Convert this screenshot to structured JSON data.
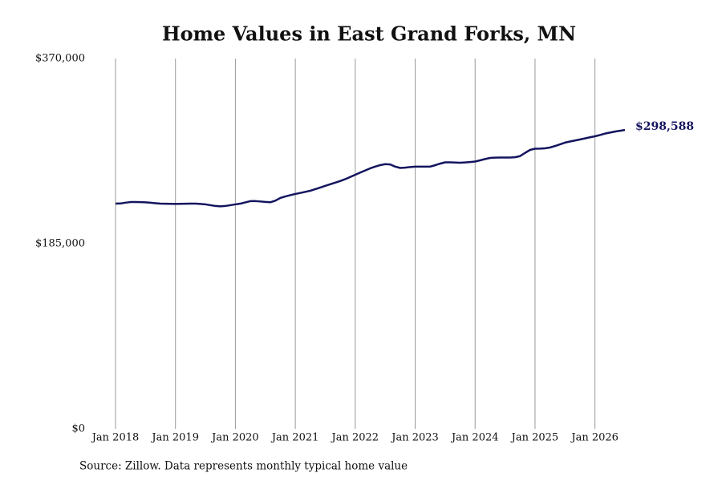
{
  "chart_data": {
    "type": "line",
    "title": "Home Values in East Grand Forks, MN",
    "source": "Source: Zillow. Data represents monthly typical home value",
    "x": [
      "2018-01",
      "2018-02",
      "2018-03",
      "2018-04",
      "2018-05",
      "2018-06",
      "2018-07",
      "2018-08",
      "2018-09",
      "2018-10",
      "2018-11",
      "2018-12",
      "2019-01",
      "2019-02",
      "2019-03",
      "2019-04",
      "2019-05",
      "2019-06",
      "2019-07",
      "2019-08",
      "2019-09",
      "2019-10",
      "2019-11",
      "2019-12",
      "2020-01",
      "2020-02",
      "2020-03",
      "2020-04",
      "2020-05",
      "2020-06",
      "2020-07",
      "2020-08",
      "2020-09",
      "2020-10",
      "2020-11",
      "2020-12",
      "2021-01",
      "2021-02",
      "2021-03",
      "2021-04",
      "2021-05",
      "2021-06",
      "2021-07",
      "2021-08",
      "2021-09",
      "2021-10",
      "2021-11",
      "2021-12",
      "2022-01",
      "2022-02",
      "2022-03",
      "2022-04",
      "2022-05",
      "2022-06",
      "2022-07",
      "2022-08",
      "2022-09",
      "2022-10",
      "2022-11",
      "2022-12",
      "2023-01",
      "2023-02",
      "2023-03",
      "2023-04",
      "2023-05",
      "2023-06",
      "2023-07",
      "2023-08",
      "2023-09",
      "2023-10",
      "2023-11",
      "2023-12",
      "2024-01",
      "2024-02",
      "2024-03",
      "2024-04",
      "2024-05",
      "2024-06",
      "2024-07",
      "2024-08",
      "2024-09",
      "2024-10",
      "2024-11",
      "2024-12",
      "2025-01",
      "2025-02",
      "2025-03",
      "2025-04",
      "2025-05",
      "2025-06",
      "2025-07",
      "2025-08",
      "2025-09",
      "2025-10",
      "2025-11",
      "2025-12",
      "2026-01",
      "2026-02",
      "2026-03",
      "2026-04",
      "2026-05",
      "2026-06",
      "2026-07"
    ],
    "series": [
      {
        "name": "Home value",
        "color": "#14145f",
        "values": [
          225000,
          225200,
          226000,
          226600,
          226600,
          226500,
          226300,
          225900,
          225400,
          225000,
          224900,
          224800,
          224700,
          224800,
          224900,
          225000,
          225000,
          224700,
          224300,
          223500,
          222700,
          222300,
          222700,
          223500,
          224300,
          225000,
          226300,
          227500,
          227600,
          227200,
          226700,
          226400,
          228000,
          230700,
          232200,
          233500,
          234700,
          235700,
          236800,
          237900,
          239500,
          241100,
          242800,
          244400,
          246000,
          247600,
          249500,
          251700,
          253900,
          256100,
          258200,
          260300,
          262000,
          263500,
          264500,
          264200,
          262000,
          260700,
          261000,
          261600,
          262000,
          262000,
          262000,
          262000,
          263400,
          265000,
          266300,
          266300,
          266100,
          265900,
          266200,
          266600,
          267100,
          268300,
          269600,
          270700,
          271000,
          271100,
          271100,
          271100,
          271400,
          272500,
          275700,
          278700,
          279900,
          280000,
          280300,
          281100,
          282600,
          284300,
          286000,
          287100,
          288100,
          289100,
          290200,
          291300,
          292300,
          293600,
          295000,
          296000,
          297000,
          297800,
          298588
        ],
        "value_labels": [
          null,
          null,
          null,
          null,
          null,
          null,
          null,
          null,
          null,
          null,
          null,
          null,
          null,
          null,
          null,
          null,
          null,
          null,
          null,
          null,
          null,
          null,
          null,
          null,
          null,
          null,
          null,
          null,
          null,
          null,
          null,
          null,
          null,
          null,
          null,
          null,
          null,
          null,
          null,
          null,
          null,
          null,
          null,
          null,
          null,
          null,
          null,
          null,
          null,
          null,
          null,
          null,
          null,
          null,
          null,
          null,
          null,
          null,
          null,
          null,
          null,
          null,
          null,
          null,
          null,
          null,
          null,
          null,
          null,
          null,
          null,
          null,
          null,
          null,
          null,
          null,
          null,
          null,
          null,
          null,
          null,
          null,
          null,
          null,
          null,
          null,
          null,
          null,
          null,
          null,
          null,
          null,
          null,
          null,
          null,
          null,
          null,
          null,
          null,
          null,
          null,
          null,
          "$298,588"
        ]
      }
    ],
    "xlim": [
      "2018-01",
      "2026-07"
    ],
    "xticks": [
      {
        "value": "2018-01",
        "label": "Jan 2018"
      },
      {
        "value": "2019-01",
        "label": "Jan 2019"
      },
      {
        "value": "2020-01",
        "label": "Jan 2020"
      },
      {
        "value": "2021-01",
        "label": "Jan 2021"
      },
      {
        "value": "2022-01",
        "label": "Jan 2022"
      },
      {
        "value": "2023-01",
        "label": "Jan 2023"
      },
      {
        "value": "2024-01",
        "label": "Jan 2024"
      },
      {
        "value": "2025-01",
        "label": "Jan 2025"
      },
      {
        "value": "2026-01",
        "label": "Jan 2026"
      }
    ],
    "ylim": [
      0,
      370000
    ],
    "yticks": [
      {
        "value": 0,
        "label": "$0"
      },
      {
        "value": 185000,
        "label": "$185,000"
      },
      {
        "value": 370000,
        "label": "$370,000"
      }
    ],
    "grid": "x"
  }
}
